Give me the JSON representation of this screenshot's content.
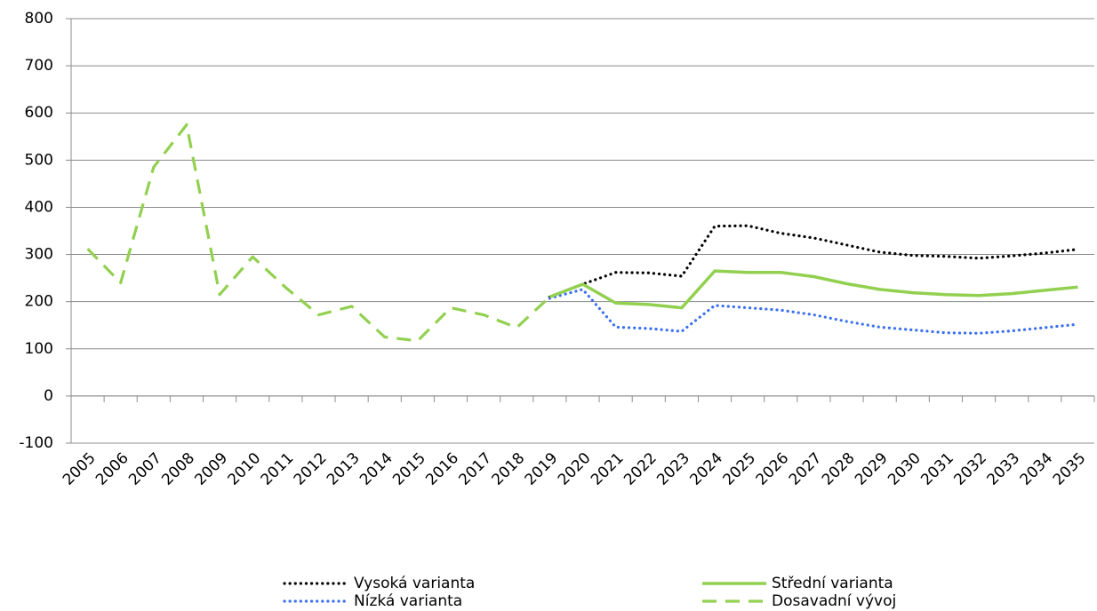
{
  "chart_data": {
    "type": "line",
    "categories": [
      "2005",
      "2006",
      "2007",
      "2008",
      "2009",
      "2010",
      "2011",
      "2012",
      "2013",
      "2014",
      "2015",
      "2016",
      "2017",
      "2018",
      "2019",
      "2020",
      "2021",
      "2022",
      "2023",
      "2024",
      "2025",
      "2026",
      "2027",
      "2028",
      "2029",
      "2030",
      "2031",
      "2032",
      "2033",
      "2034",
      "2035"
    ],
    "series": [
      {
        "name": "Vysoká varianta",
        "color": "#000000",
        "dash": "dotted",
        "values": [
          null,
          null,
          null,
          null,
          null,
          null,
          null,
          null,
          null,
          null,
          null,
          null,
          null,
          null,
          210,
          237,
          262,
          261,
          254,
          360,
          361,
          345,
          335,
          320,
          305,
          298,
          296,
          292,
          297,
          303,
          311
        ]
      },
      {
        "name": "Střední varianta",
        "color": "#92d050",
        "dash": "solid",
        "values": [
          null,
          null,
          null,
          null,
          null,
          null,
          null,
          null,
          null,
          null,
          null,
          null,
          null,
          null,
          210,
          237,
          197,
          194,
          187,
          265,
          262,
          262,
          253,
          238,
          226,
          219,
          215,
          213,
          217,
          224,
          231
        ]
      },
      {
        "name": "Nízká varianta",
        "color": "#3a6ff0",
        "dash": "dotted",
        "values": [
          null,
          null,
          null,
          null,
          null,
          null,
          null,
          null,
          null,
          null,
          null,
          null,
          null,
          null,
          207,
          226,
          146,
          143,
          137,
          192,
          187,
          182,
          172,
          158,
          146,
          140,
          134,
          133,
          138,
          145,
          152
        ]
      },
      {
        "name": "Dosavadní vývoj",
        "color": "#92d050",
        "dash": "dashed",
        "values": [
          312,
          240,
          485,
          575,
          215,
          295,
          230,
          172,
          190,
          125,
          117,
          187,
          172,
          145,
          210,
          null,
          null,
          null,
          null,
          null,
          null,
          null,
          null,
          null,
          null,
          null,
          null,
          null,
          null,
          null,
          null
        ]
      }
    ],
    "ylim": [
      -100,
      800
    ],
    "yticks": [
      -100,
      0,
      100,
      200,
      300,
      400,
      500,
      600,
      700,
      800
    ],
    "grid": true
  }
}
